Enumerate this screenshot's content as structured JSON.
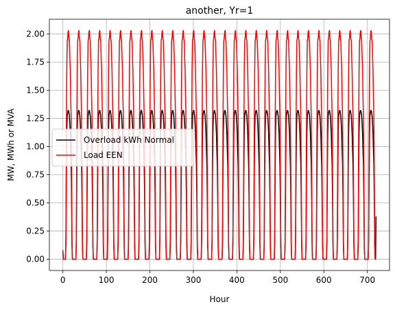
{
  "chart_data": {
    "type": "line",
    "title": "another, Yr=1",
    "xlabel": "Hour",
    "ylabel": "MW, MWh or MVA",
    "xlim": [
      -31,
      751
    ],
    "ylim": [
      -0.1,
      2.13
    ],
    "xticks": [
      0,
      100,
      200,
      300,
      400,
      500,
      600,
      700
    ],
    "xtick_labels": [
      "0",
      "100",
      "200",
      "300",
      "400",
      "500",
      "600",
      "700"
    ],
    "yticks": [
      0.0,
      0.25,
      0.5,
      0.75,
      1.0,
      1.25,
      1.5,
      1.75,
      2.0
    ],
    "ytick_labels": [
      "0.00",
      "0.25",
      "0.50",
      "0.75",
      "1.00",
      "1.25",
      "1.50",
      "1.75",
      "2.00"
    ],
    "grid": true,
    "legend_position": "center-left",
    "series": [
      {
        "name": "Overload kWh Normal",
        "color": "#000000",
        "profile": "daily",
        "period_hours": 24,
        "hours": 720,
        "daily_shape": [
          0.0,
          0.0,
          0.0,
          0.0,
          0.0,
          0.0,
          0.0,
          0.14,
          0.72,
          1.12,
          1.27,
          1.3,
          1.32,
          1.32,
          1.3,
          1.27,
          1.2,
          1.12,
          0.97,
          0.84,
          0.55,
          0.12,
          0.0,
          0.0
        ],
        "start_value": 0.08,
        "end_value": 0.38
      },
      {
        "name": "Load EEN",
        "color": "#ff0000",
        "profile": "daily",
        "period_hours": 24,
        "hours": 720,
        "daily_shape": [
          0.0,
          0.0,
          0.0,
          0.0,
          0.0,
          0.0,
          0.0,
          0.21,
          1.08,
          1.68,
          1.94,
          1.96,
          2.02,
          2.03,
          1.96,
          1.94,
          1.8,
          1.68,
          1.45,
          1.26,
          0.82,
          0.18,
          0.0,
          0.0
        ],
        "start_value": 0.08,
        "end_value": 0.0
      }
    ]
  }
}
